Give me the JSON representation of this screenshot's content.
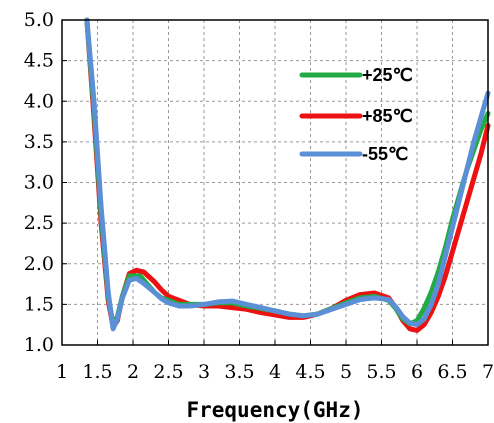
{
  "chart_data": {
    "type": "line",
    "title": "",
    "xlabel": "Frequency(GHz)",
    "ylabel": "",
    "xlim": [
      1,
      7
    ],
    "ylim": [
      1.0,
      5.0
    ],
    "grid": true,
    "legend_position": "top-right",
    "x_ticks": [
      "1",
      "1.5",
      "2",
      "2.5",
      "3",
      "3.5",
      "4",
      "4.5",
      "5",
      "5.5",
      "6",
      "6.5",
      "7"
    ],
    "y_ticks": [
      "1.0",
      "1.5",
      "2.0",
      "2.5",
      "3.0",
      "3.5",
      "4.0",
      "4.5",
      "5.0"
    ],
    "series": [
      {
        "name": "+25℃",
        "color": "#22aa44",
        "x": [
          1.35,
          1.45,
          1.55,
          1.65,
          1.72,
          1.78,
          1.85,
          1.95,
          2.1,
          2.2,
          2.3,
          2.4,
          2.5,
          2.65,
          2.8,
          3.0,
          3.2,
          3.4,
          3.6,
          3.8,
          4.0,
          4.2,
          4.4,
          4.6,
          4.8,
          5.0,
          5.2,
          5.4,
          5.6,
          5.7,
          5.8,
          5.9,
          6.0,
          6.1,
          6.2,
          6.3,
          6.4,
          6.5,
          6.6,
          6.7,
          6.8,
          6.9,
          7.0
        ],
        "y": [
          5.0,
          3.9,
          2.6,
          1.6,
          1.25,
          1.35,
          1.6,
          1.85,
          1.85,
          1.75,
          1.65,
          1.58,
          1.55,
          1.5,
          1.5,
          1.5,
          1.52,
          1.52,
          1.48,
          1.45,
          1.42,
          1.38,
          1.36,
          1.38,
          1.45,
          1.52,
          1.58,
          1.6,
          1.55,
          1.45,
          1.32,
          1.26,
          1.3,
          1.45,
          1.65,
          1.9,
          2.2,
          2.55,
          2.85,
          3.15,
          3.4,
          3.65,
          3.85
        ]
      },
      {
        "name": "+85℃",
        "color": "#ee1111",
        "x": [
          1.35,
          1.45,
          1.55,
          1.65,
          1.72,
          1.78,
          1.85,
          1.95,
          2.05,
          2.15,
          2.3,
          2.4,
          2.5,
          2.65,
          2.8,
          3.0,
          3.2,
          3.4,
          3.6,
          3.8,
          4.0,
          4.2,
          4.4,
          4.6,
          4.8,
          5.0,
          5.2,
          5.4,
          5.6,
          5.7,
          5.8,
          5.9,
          6.0,
          6.1,
          6.2,
          6.3,
          6.4,
          6.5,
          6.6,
          6.7,
          6.8,
          6.9,
          7.0
        ],
        "y": [
          5.0,
          3.8,
          2.5,
          1.55,
          1.22,
          1.3,
          1.6,
          1.88,
          1.92,
          1.9,
          1.78,
          1.68,
          1.6,
          1.55,
          1.5,
          1.48,
          1.48,
          1.46,
          1.44,
          1.4,
          1.37,
          1.34,
          1.34,
          1.38,
          1.45,
          1.55,
          1.62,
          1.64,
          1.58,
          1.46,
          1.3,
          1.2,
          1.18,
          1.25,
          1.4,
          1.6,
          1.85,
          2.15,
          2.45,
          2.75,
          3.05,
          3.35,
          3.7
        ]
      },
      {
        "name": "-55℃",
        "color": "#5b8fd6",
        "x": [
          1.35,
          1.45,
          1.55,
          1.65,
          1.72,
          1.78,
          1.85,
          1.95,
          2.05,
          2.15,
          2.3,
          2.4,
          2.5,
          2.65,
          2.8,
          3.0,
          3.2,
          3.4,
          3.6,
          3.8,
          4.0,
          4.2,
          4.4,
          4.6,
          4.8,
          5.0,
          5.2,
          5.4,
          5.6,
          5.7,
          5.8,
          5.9,
          6.0,
          6.1,
          6.2,
          6.3,
          6.4,
          6.5,
          6.6,
          6.7,
          6.8,
          6.9,
          7.0
        ],
        "y": [
          5.0,
          4.0,
          2.7,
          1.65,
          1.2,
          1.32,
          1.58,
          1.8,
          1.82,
          1.76,
          1.65,
          1.57,
          1.52,
          1.48,
          1.48,
          1.5,
          1.53,
          1.54,
          1.5,
          1.46,
          1.42,
          1.38,
          1.36,
          1.38,
          1.44,
          1.5,
          1.56,
          1.58,
          1.56,
          1.47,
          1.35,
          1.27,
          1.25,
          1.32,
          1.5,
          1.75,
          2.1,
          2.45,
          2.8,
          3.15,
          3.5,
          3.8,
          4.1
        ]
      }
    ]
  }
}
